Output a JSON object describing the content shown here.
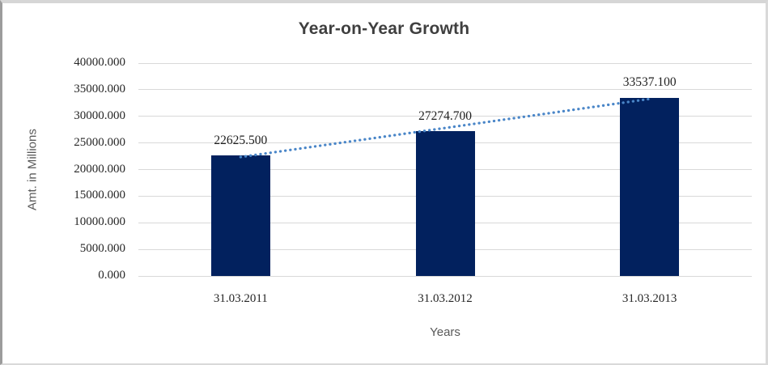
{
  "chart_data": {
    "type": "bar",
    "title": "Year-on-Year Growth",
    "xlabel": "Years",
    "ylabel": "Amt. in Millions",
    "categories": [
      "31.03.2011",
      "31.03.2012",
      "31.03.2013"
    ],
    "values": [
      22625.5,
      27274.7,
      33537.1
    ],
    "data_labels": [
      "22625.500",
      "27274.700",
      "33537.100"
    ],
    "y_ticks": [
      "0.000",
      "5000.000",
      "10000.000",
      "15000.000",
      "20000.000",
      "25000.000",
      "30000.000",
      "35000.000",
      "40000.000"
    ],
    "ylim": [
      0,
      40000
    ],
    "grid": true,
    "legend": "none",
    "trendline": {
      "type": "linear",
      "style": "dotted",
      "endpoint_values": [
        22356.6,
        33268.2
      ]
    },
    "colors": {
      "bar": "#02215e",
      "trendline": "#4a86c8",
      "gridline": "#d9d9d9",
      "title": "#3f3f3f",
      "axis_title": "#595959",
      "tick_label": "#262626"
    }
  }
}
